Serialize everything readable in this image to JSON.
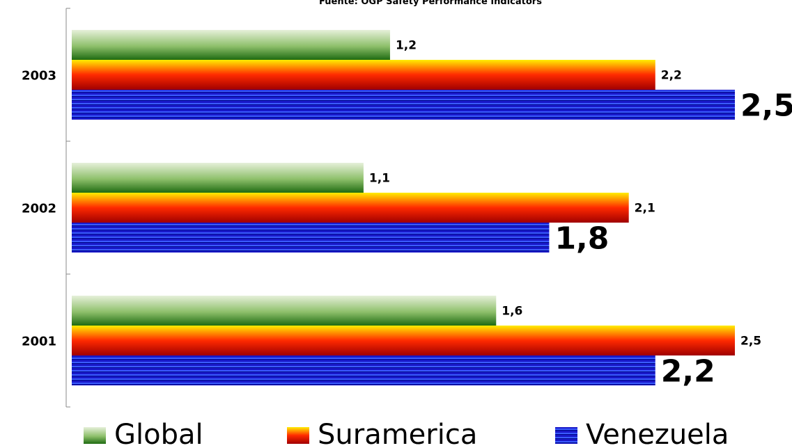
{
  "chart_data": {
    "type": "bar",
    "orientation": "horizontal",
    "title": "Fuente: OGP Safety Performance Indicators",
    "categories": [
      "2003",
      "2002",
      "2001"
    ],
    "series": [
      {
        "name": "Global",
        "values": [
          1.2,
          1.1,
          1.6
        ],
        "labels": [
          "1,2",
          "1,1",
          "1,6"
        ],
        "color": "#2e7d20"
      },
      {
        "name": "Suramerica",
        "values": [
          2.2,
          2.1,
          2.5
        ],
        "labels": [
          "2,2",
          "2,1",
          "2,5"
        ],
        "color": "#ff0000"
      },
      {
        "name": "Venezuela",
        "values": [
          2.5,
          1.8,
          2.2
        ],
        "labels": [
          "2,5",
          "1,8",
          "2,2"
        ],
        "color": "#1010cc"
      }
    ],
    "xlim": [
      0,
      2.5
    ],
    "grid": false,
    "legend": "bottom"
  }
}
